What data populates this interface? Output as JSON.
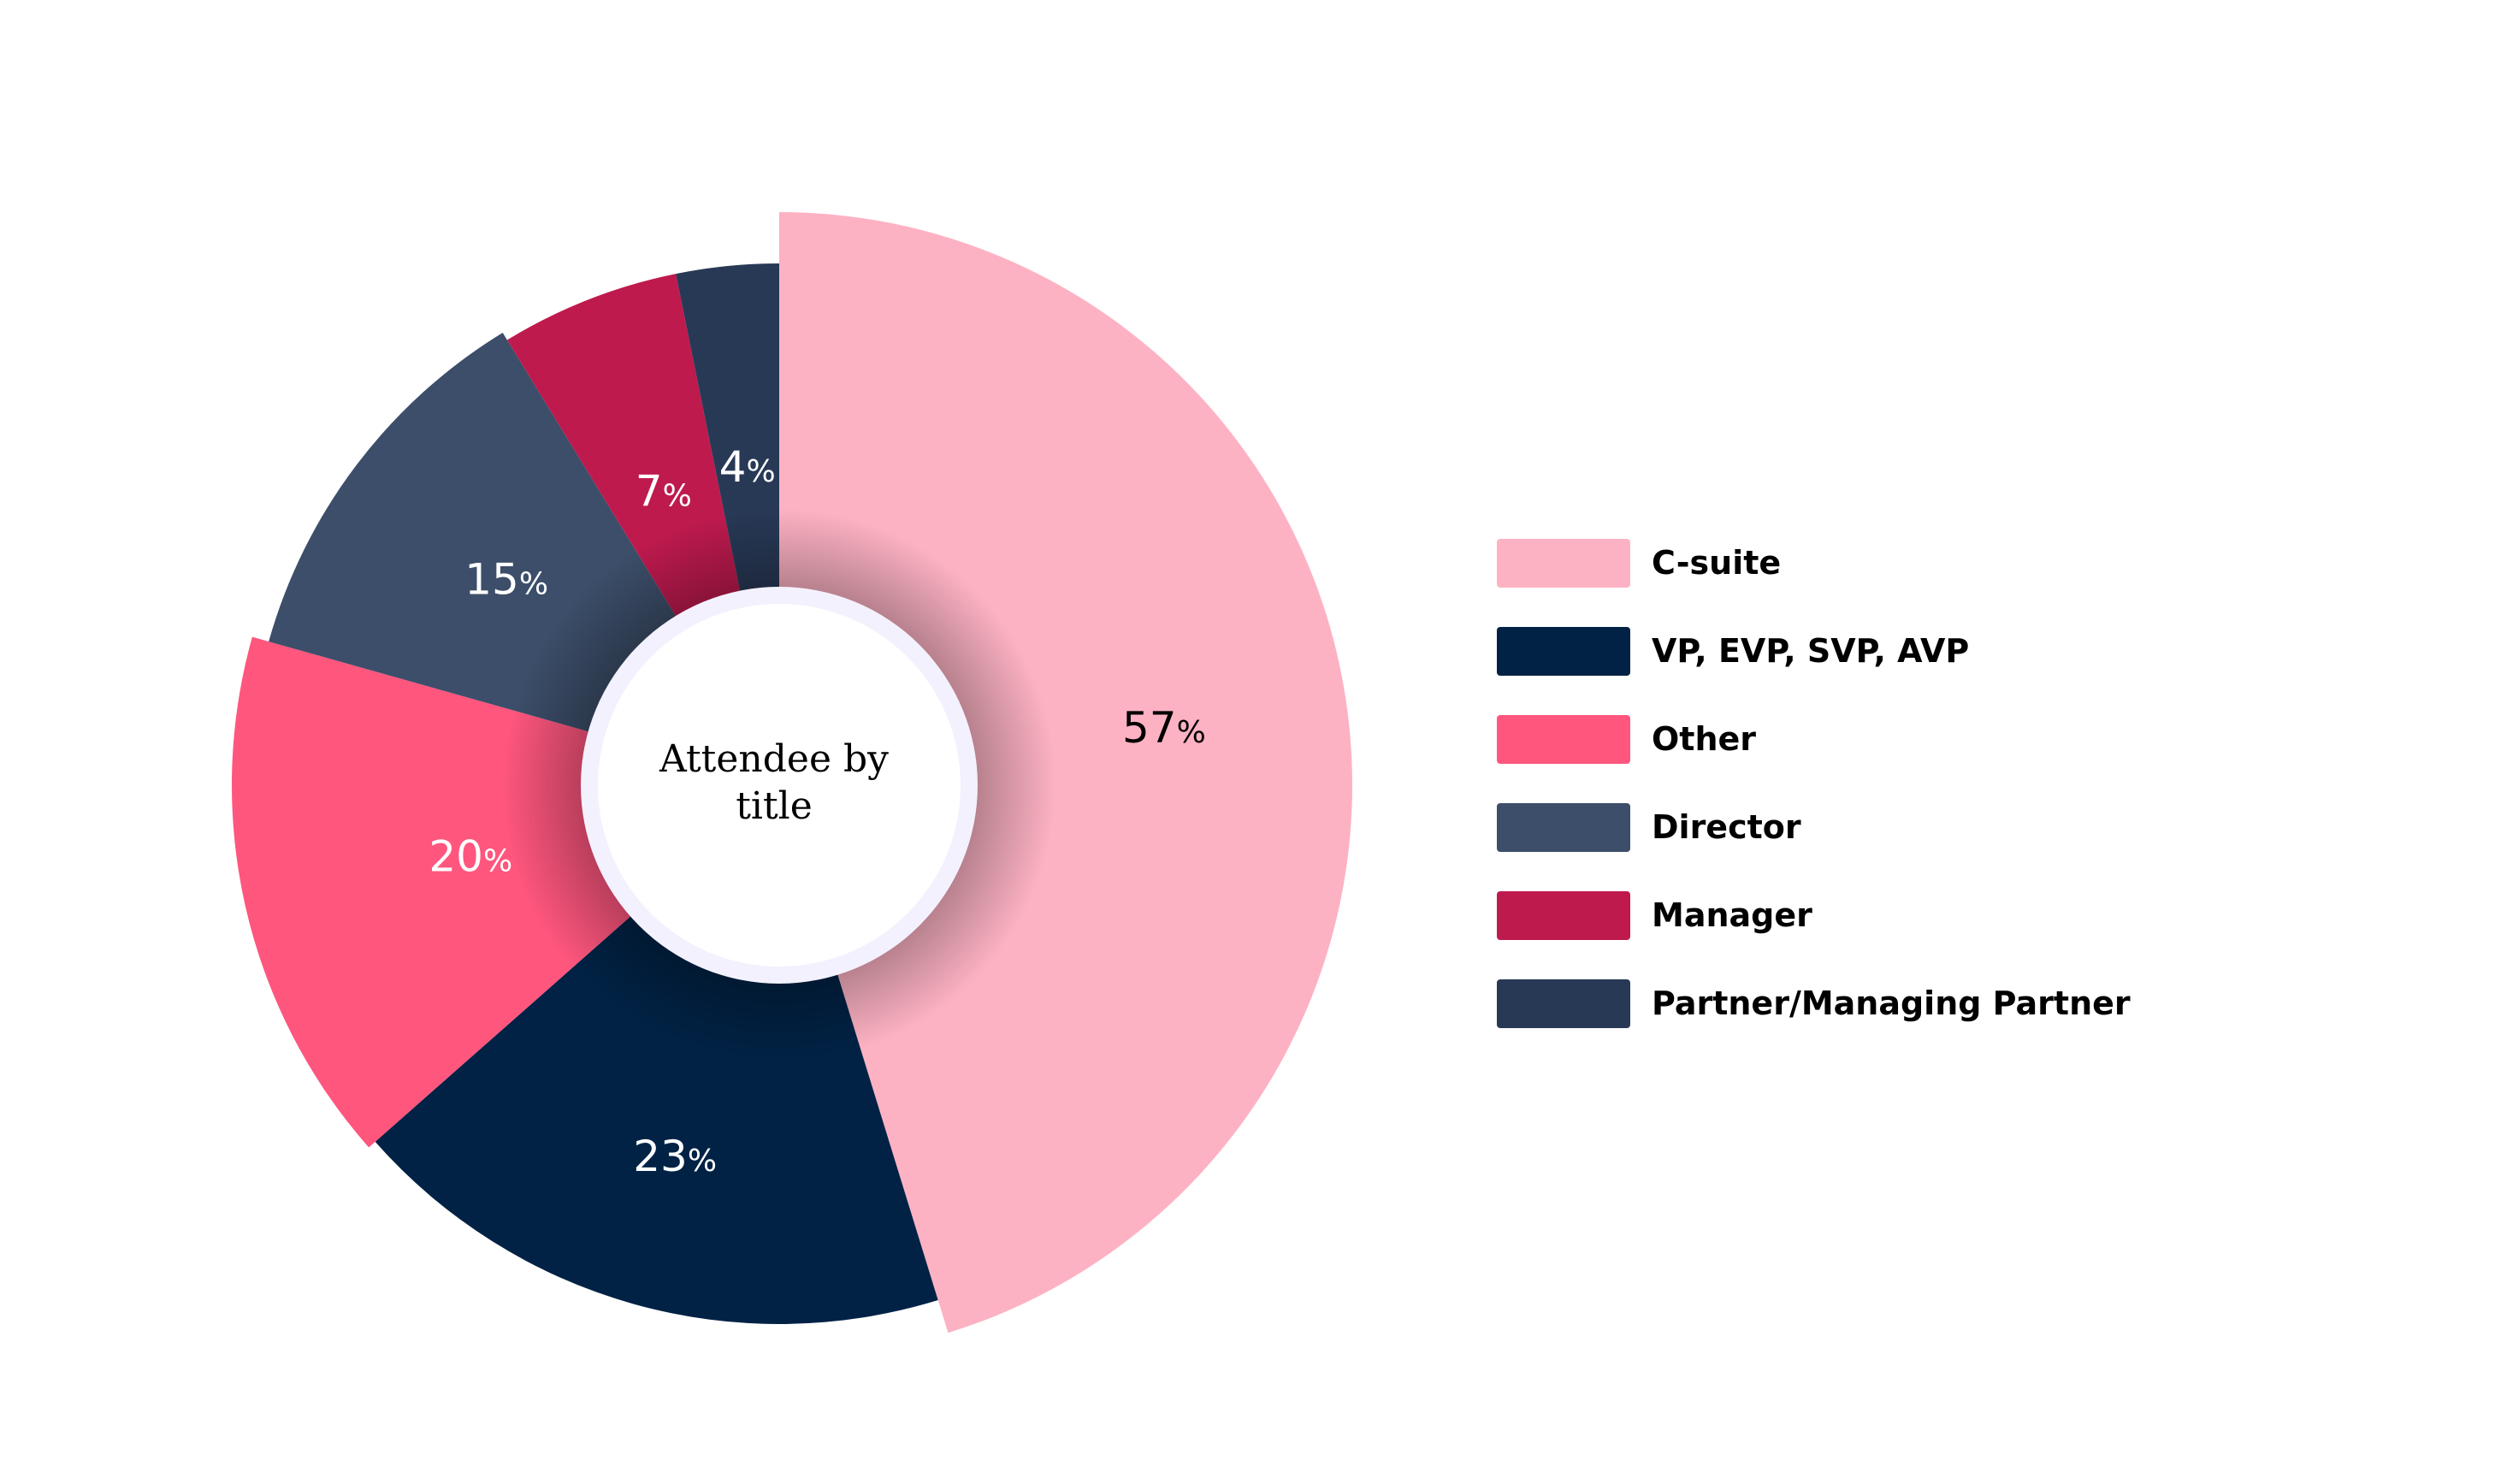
{
  "chart_data": {
    "type": "pie",
    "title": "Attendee by title",
    "slices": [
      {
        "label": "C-suite",
        "value": 57,
        "display_value": "57",
        "unit": "%",
        "color": "#FDB2C3",
        "label_color": "#000000"
      },
      {
        "label": "VP, EVP, SVP, AVP",
        "value": 23,
        "display_value": "23",
        "unit": "%",
        "color": "#012245",
        "label_color": "#FFFFFF"
      },
      {
        "label": "Other",
        "value": 20,
        "display_value": "20",
        "unit": "%",
        "color": "#FF567E",
        "label_color": "#FFFFFF"
      },
      {
        "label": "Director",
        "value": 15,
        "display_value": "15",
        "unit": "%",
        "color": "#3C4E69",
        "label_color": "#FFFFFF"
      },
      {
        "label": "Manager",
        "value": 7,
        "display_value": "7",
        "unit": "%",
        "color": "#BE1A4E",
        "label_color": "#FFFFFF"
      },
      {
        "label": "Partner/Managing Partner",
        "value": 4,
        "display_value": "4",
        "unit": "%",
        "color": "#283956",
        "label_color": "#FFFFFF"
      }
    ],
    "legend_position": "right",
    "center_label": "Attendee by title"
  },
  "center": {
    "line1": "Attendee by",
    "line2": "title"
  }
}
